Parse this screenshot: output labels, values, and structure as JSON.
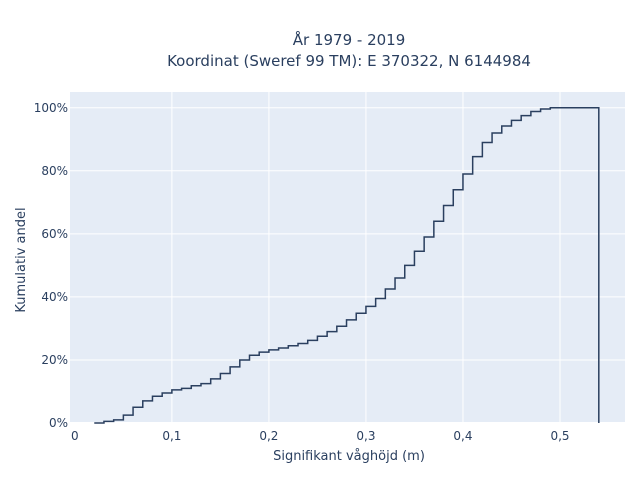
{
  "chart_data": {
    "type": "line",
    "line_shape": "step",
    "title_lines": [
      "År 1979 - 2019",
      "Koordinat (Sweref 99 TM): E 370322, N 6144984"
    ],
    "xlabel": "Signifikant våghöjd (m)",
    "ylabel": "Kumulativ andel",
    "xlim": [
      -0.005,
      0.567
    ],
    "ylim": [
      0,
      1.05
    ],
    "x_ticks": [
      0,
      0.1,
      0.2,
      0.3,
      0.4,
      0.5
    ],
    "x_tick_labels": [
      "0",
      "0,1",
      "0,2",
      "0,3",
      "0,4",
      "0,5"
    ],
    "y_ticks": [
      0,
      0.2,
      0.4,
      0.6,
      0.8,
      1.0
    ],
    "y_tick_labels": [
      "0%",
      "20%",
      "40%",
      "60%",
      "80%",
      "100%"
    ],
    "grid": true,
    "colors": {
      "plot_bg": "#e5ecf6",
      "grid": "#ffffff",
      "line": "#2a3f5f",
      "text": "#2a3f5f"
    },
    "series": [
      {
        "x": [
          0.02,
          0.03,
          0.04,
          0.05,
          0.06,
          0.07,
          0.08,
          0.09,
          0.1,
          0.11,
          0.12,
          0.13,
          0.14,
          0.15,
          0.16,
          0.17,
          0.18,
          0.19,
          0.2,
          0.21,
          0.22,
          0.23,
          0.24,
          0.25,
          0.26,
          0.27,
          0.28,
          0.29,
          0.3,
          0.31,
          0.32,
          0.33,
          0.34,
          0.35,
          0.36,
          0.37,
          0.38,
          0.39,
          0.4,
          0.41,
          0.42,
          0.43,
          0.44,
          0.45,
          0.46,
          0.47,
          0.48,
          0.49,
          0.5,
          0.51,
          0.52,
          0.53,
          0.54,
          0.54
        ],
        "y": [
          0.0,
          0.005,
          0.01,
          0.025,
          0.05,
          0.07,
          0.085,
          0.095,
          0.105,
          0.11,
          0.118,
          0.125,
          0.14,
          0.157,
          0.178,
          0.2,
          0.215,
          0.225,
          0.232,
          0.238,
          0.245,
          0.252,
          0.262,
          0.275,
          0.29,
          0.307,
          0.327,
          0.348,
          0.37,
          0.395,
          0.425,
          0.46,
          0.5,
          0.545,
          0.59,
          0.64,
          0.69,
          0.74,
          0.79,
          0.845,
          0.89,
          0.92,
          0.942,
          0.96,
          0.975,
          0.988,
          0.996,
          1.0,
          1.0,
          1.0,
          1.0,
          1.0,
          1.0,
          0.0
        ]
      }
    ]
  }
}
